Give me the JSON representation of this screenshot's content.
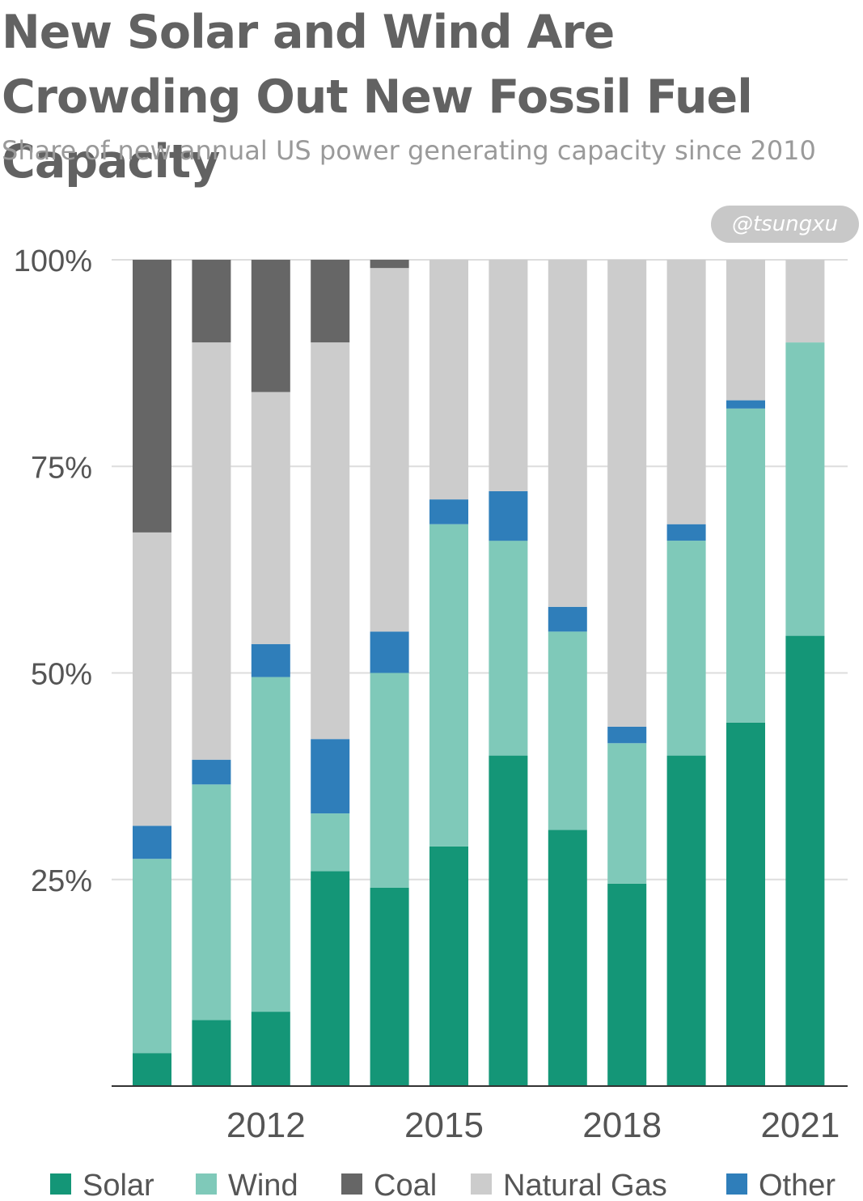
{
  "title": "New Solar and Wind Are Crowding Out New Fossil Fuel Capacity",
  "subtitle": "Share of new annual US power generating capacity since 2010",
  "watermark": "@tsungxu",
  "colors": {
    "Solar": "#149677",
    "Wind": "#7fc9b9",
    "Coal": "#666666",
    "Natural Gas": "#cccccc",
    "Other": "#2f7eba",
    "grid": "#dddddd",
    "axis": "#333333"
  },
  "chart_data": {
    "type": "bar",
    "stacked": true,
    "x": [
      2010,
      2011,
      2012,
      2013,
      2014,
      2015,
      2016,
      2017,
      2018,
      2019,
      2020,
      2021
    ],
    "x_tick_labels": [
      "2012",
      "2015",
      "2018",
      "2021"
    ],
    "x_tick_values": [
      2012,
      2015,
      2018,
      2021
    ],
    "y_tick_labels": [
      "25%",
      "50%",
      "75%",
      "100%"
    ],
    "y_tick_values": [
      25,
      50,
      75,
      100
    ],
    "ylim": [
      0,
      100
    ],
    "grid": true,
    "legend_position": "bottom",
    "series": [
      {
        "name": "Solar",
        "values": [
          4,
          8,
          9,
          26,
          24,
          29,
          40,
          31,
          24.5,
          40,
          44,
          54.5
        ]
      },
      {
        "name": "Wind",
        "values": [
          23.5,
          28.5,
          40.5,
          7,
          26,
          39,
          26,
          24,
          17,
          26,
          38,
          35.5
        ]
      },
      {
        "name": "Other",
        "values": [
          4,
          3,
          4,
          9,
          5,
          3,
          6,
          3,
          2,
          2,
          1,
          0
        ]
      },
      {
        "name": "Natural Gas",
        "values": [
          35.5,
          50.5,
          30.5,
          48,
          44,
          29,
          28,
          42,
          56.5,
          32,
          17,
          10
        ]
      },
      {
        "name": "Coal",
        "values": [
          33,
          10,
          16,
          10,
          1,
          0,
          0,
          0,
          0,
          0,
          0,
          0
        ]
      }
    ]
  }
}
